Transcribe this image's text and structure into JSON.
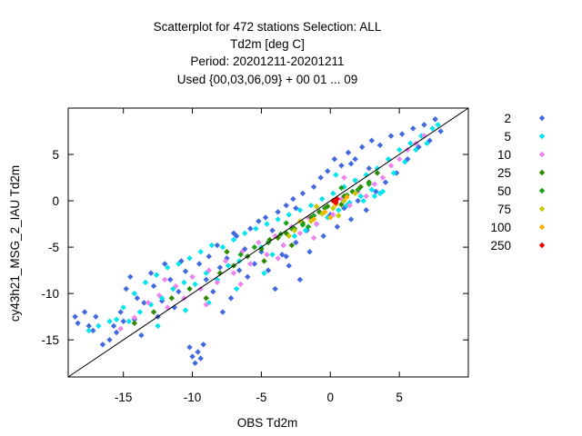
{
  "chart_data": {
    "type": "scatter",
    "title_lines": [
      "Scatterplot for  472 stations Selection: ALL",
      "Td2m [deg C]",
      "Period: 20201211-20201211",
      "Used {00,03,06,09} + 00 01 ... 09"
    ],
    "xlabel": "OBS Td2m",
    "ylabel": "cy43h21_MSG_2_IAU Td2m",
    "xlim": [
      -19,
      10
    ],
    "ylim": [
      -19,
      10
    ],
    "xticks": [
      -15,
      -10,
      -5,
      0,
      5
    ],
    "yticks": [
      -15,
      -10,
      -5,
      0,
      5
    ],
    "diagonal": true,
    "legend_position": "right",
    "series": [
      {
        "name": "2",
        "color": "#4169e1",
        "points": [
          [
            -18.5,
            -12.5
          ],
          [
            -18.3,
            -13.2
          ],
          [
            -17.8,
            -12
          ],
          [
            -17.5,
            -13.5
          ],
          [
            -17.2,
            -14
          ],
          [
            -17,
            -12.5
          ],
          [
            -16.5,
            -15.5
          ],
          [
            -16,
            -15
          ],
          [
            -15.7,
            -13.5
          ],
          [
            -15.5,
            -14.2
          ],
          [
            -15.2,
            -12
          ],
          [
            -15,
            -13
          ],
          [
            -14.8,
            -9.5
          ],
          [
            -14.5,
            -8.2
          ],
          [
            -14.2,
            -12.8
          ],
          [
            -14,
            -10.5
          ],
          [
            -13.7,
            -14.5
          ],
          [
            -13.5,
            -11
          ],
          [
            -13,
            -7.8
          ],
          [
            -12.8,
            -9.2
          ],
          [
            -12.5,
            -12.5
          ],
          [
            -12.2,
            -10.8
          ],
          [
            -12,
            -6.8
          ],
          [
            -11.6,
            -8.5
          ],
          [
            -11.3,
            -11.5
          ],
          [
            -11,
            -9.8
          ],
          [
            -10.8,
            -6.5
          ],
          [
            -10.5,
            -7.6
          ],
          [
            -10.2,
            -15.8
          ],
          [
            -10,
            -16.8
          ],
          [
            -9.8,
            -17.5
          ],
          [
            -9.6,
            -16.3
          ],
          [
            -9.4,
            -17
          ],
          [
            -9.2,
            -15.5
          ],
          [
            -9,
            -8.5
          ],
          [
            -8.8,
            -6
          ],
          [
            -8.5,
            -9.8
          ],
          [
            -8.2,
            -4.8
          ],
          [
            -8,
            -7.2
          ],
          [
            -7.8,
            -12
          ],
          [
            -7.5,
            -6.2
          ],
          [
            -7.2,
            -10.5
          ],
          [
            -7,
            -3.5
          ],
          [
            -6.6,
            -7.5
          ],
          [
            -6.2,
            -5.2
          ],
          [
            -6,
            -8.2
          ],
          [
            -5.8,
            -3
          ],
          [
            -5.5,
            -6.8
          ],
          [
            -5.2,
            -2.2
          ],
          [
            -5,
            -5.5
          ],
          [
            -4.7,
            -1.8
          ],
          [
            -4.5,
            -7.5
          ],
          [
            -4.2,
            -3.2
          ],
          [
            -4,
            -9.5
          ],
          [
            -3.8,
            -1.2
          ],
          [
            -3.5,
            -5.8
          ],
          [
            -3.2,
            -0.5
          ],
          [
            -3,
            -7
          ],
          [
            -2.7,
            0.2
          ],
          [
            -2.5,
            -4.5
          ],
          [
            -2.2,
            -8.5
          ],
          [
            -2,
            0.8
          ],
          [
            -1.7,
            -3.2
          ],
          [
            -1.5,
            -5.5
          ],
          [
            -1.2,
            1.5
          ],
          [
            -1,
            -2.5
          ],
          [
            -0.7,
            2.5
          ],
          [
            -0.5,
            -3.8
          ],
          [
            -0.2,
            3.2
          ],
          [
            0,
            -1.5
          ],
          [
            0.3,
            4.5
          ],
          [
            0.5,
            -2.8
          ],
          [
            0.8,
            3.8
          ],
          [
            1,
            -0.8
          ],
          [
            1.3,
            5.2
          ],
          [
            1.5,
            -2
          ],
          [
            1.8,
            4.5
          ],
          [
            2,
            0
          ],
          [
            2.3,
            5.8
          ],
          [
            2.6,
            -1
          ],
          [
            3,
            6.5
          ],
          [
            3.3,
            1
          ],
          [
            3.6,
            6
          ],
          [
            4,
            2
          ],
          [
            4.4,
            7
          ],
          [
            4.8,
            3
          ],
          [
            5.2,
            7.2
          ],
          [
            5.6,
            4.5
          ],
          [
            6,
            7.8
          ],
          [
            6.4,
            5.8
          ],
          [
            6.8,
            8.2
          ],
          [
            7.2,
            6.5
          ],
          [
            7.6,
            8.8
          ],
          [
            8,
            7.5
          ],
          [
            -2.5,
            -0.8
          ],
          [
            -3.2,
            -6
          ],
          [
            1.5,
            4
          ],
          [
            -0.8,
            -1.2
          ],
          [
            2.8,
            3.5
          ],
          [
            -6.8,
            -3.8
          ],
          [
            -9.5,
            -6.8
          ]
        ]
      },
      {
        "name": "5",
        "color": "#00e5ee",
        "points": [
          [
            -17.5,
            -14
          ],
          [
            -16.8,
            -13.5
          ],
          [
            -16,
            -13
          ],
          [
            -15.5,
            -12.8
          ],
          [
            -15,
            -11.5
          ],
          [
            -14.6,
            -13
          ],
          [
            -14.2,
            -10
          ],
          [
            -13.8,
            -12
          ],
          [
            -13.4,
            -8.8
          ],
          [
            -13,
            -11.2
          ],
          [
            -12.6,
            -8
          ],
          [
            -12.2,
            -10.5
          ],
          [
            -11.8,
            -7.2
          ],
          [
            -11.4,
            -9.5
          ],
          [
            -11,
            -6.8
          ],
          [
            -10.6,
            -8.8
          ],
          [
            -10.2,
            -6.2
          ],
          [
            -9.8,
            -9
          ],
          [
            -9.4,
            -5.5
          ],
          [
            -9,
            -7.8
          ],
          [
            -8.6,
            -4.8
          ],
          [
            -8.2,
            -8.5
          ],
          [
            -7.8,
            -5
          ],
          [
            -7.4,
            -7
          ],
          [
            -7,
            -4.2
          ],
          [
            -6.6,
            -6.5
          ],
          [
            -6.2,
            -3.5
          ],
          [
            -5.8,
            -6.8
          ],
          [
            -5.4,
            -3
          ],
          [
            -5,
            -5
          ],
          [
            -4.6,
            -2.5
          ],
          [
            -4.2,
            -5.8
          ],
          [
            -3.8,
            -2
          ],
          [
            -3.4,
            -4.8
          ],
          [
            -3,
            -1.5
          ],
          [
            -2.6,
            -3.8
          ],
          [
            -2.2,
            -1
          ],
          [
            -1.8,
            -3.2
          ],
          [
            -1.4,
            -0.5
          ],
          [
            -1,
            -2.5
          ],
          [
            -0.6,
            0.2
          ],
          [
            -0.2,
            -1.8
          ],
          [
            0.2,
            0.8
          ],
          [
            0.6,
            -1
          ],
          [
            1,
            1.5
          ],
          [
            1.4,
            -0.2
          ],
          [
            1.8,
            2.2
          ],
          [
            2.2,
            0.5
          ],
          [
            2.6,
            2.8
          ],
          [
            3,
            1.2
          ],
          [
            3.4,
            3.5
          ],
          [
            3.8,
            1
          ],
          [
            4.2,
            4.5
          ],
          [
            4.6,
            3
          ],
          [
            5,
            5.5
          ],
          [
            5.4,
            4.2
          ],
          [
            5.8,
            6.2
          ],
          [
            6.2,
            5.5
          ],
          [
            6.6,
            7
          ],
          [
            7,
            6.2
          ],
          [
            7.4,
            7.8
          ],
          [
            7.8,
            8.2
          ],
          [
            3.2,
            0.5
          ],
          [
            2.4,
            0
          ],
          [
            -8.8,
            -11
          ],
          [
            -12.5,
            -13.5
          ],
          [
            -10.5,
            -11.8
          ],
          [
            -6.8,
            -9.5
          ],
          [
            -4.8,
            -7.8
          ],
          [
            1.2,
            -0.5
          ],
          [
            3.6,
            0.8
          ],
          [
            0.4,
            2.8
          ]
        ]
      },
      {
        "name": "10",
        "color": "#ee82ee",
        "points": [
          [
            -15.2,
            -13.8
          ],
          [
            -14.2,
            -12.6
          ],
          [
            -13.2,
            -11
          ],
          [
            -12.4,
            -10.2
          ],
          [
            -11.8,
            -11.5
          ],
          [
            -11.2,
            -9.2
          ],
          [
            -10.6,
            -10.5
          ],
          [
            -10,
            -8.2
          ],
          [
            -9.4,
            -9.5
          ],
          [
            -8.8,
            -7.5
          ],
          [
            -8.2,
            -8.8
          ],
          [
            -7.6,
            -6.5
          ],
          [
            -7,
            -7.8
          ],
          [
            -6.4,
            -5.5
          ],
          [
            -5.8,
            -6.8
          ],
          [
            -5.2,
            -4.5
          ],
          [
            -4.6,
            -5.8
          ],
          [
            -4,
            -3.8
          ],
          [
            -3.4,
            -4.8
          ],
          [
            -2.8,
            -2.8
          ],
          [
            -2.2,
            -3.5
          ],
          [
            -1.6,
            -1.8
          ],
          [
            -1,
            -2.5
          ],
          [
            -0.4,
            -0.8
          ],
          [
            0.2,
            -1.5
          ],
          [
            0.8,
            0.2
          ],
          [
            1.4,
            -0.5
          ],
          [
            2,
            1
          ],
          [
            2.6,
            0.5
          ],
          [
            3.2,
            1.8
          ],
          [
            3.8,
            2.5
          ],
          [
            4.4,
            3.8
          ],
          [
            5,
            4.5
          ],
          [
            5.6,
            5.5
          ],
          [
            6.2,
            6.2
          ],
          [
            6.8,
            7
          ],
          [
            -9,
            -11.2
          ],
          [
            -6.5,
            -9
          ],
          [
            -3.8,
            -6.2
          ],
          [
            -1.2,
            -4
          ],
          [
            1,
            2.5
          ],
          [
            -12,
            -8.5
          ]
        ]
      },
      {
        "name": "25",
        "color": "#2e8b00",
        "points": [
          [
            -14.2,
            -13.2
          ],
          [
            -12.8,
            -12
          ],
          [
            -11.5,
            -10.5
          ],
          [
            -10.2,
            -9.5
          ],
          [
            -9,
            -10.5
          ],
          [
            -8,
            -7.8
          ],
          [
            -7,
            -7
          ],
          [
            -6,
            -6
          ],
          [
            -5,
            -5.2
          ],
          [
            -4.4,
            -4.2
          ],
          [
            -3.8,
            -4
          ],
          [
            -3.2,
            -3.5
          ],
          [
            -2.6,
            -3
          ],
          [
            -2,
            -2.4
          ],
          [
            -1.4,
            -1.8
          ],
          [
            -0.8,
            -1.2
          ],
          [
            -0.2,
            -0.6
          ],
          [
            0.4,
            0
          ],
          [
            1,
            0.5
          ],
          [
            1.6,
            1
          ],
          [
            2.2,
            1.5
          ],
          [
            2.8,
            2
          ],
          [
            3.4,
            3
          ],
          [
            -4.8,
            -6.5
          ],
          [
            -7.5,
            -5.5
          ],
          [
            -2.8,
            -4.8
          ],
          [
            0.8,
            -0.4
          ]
        ]
      },
      {
        "name": "50",
        "color": "#1ea01e",
        "points": [
          [
            -6.5,
            -5.8
          ],
          [
            -5.5,
            -5
          ],
          [
            -4.5,
            -4.5
          ],
          [
            -3.6,
            -3.6
          ],
          [
            -2.8,
            -3
          ],
          [
            -2,
            -2.6
          ],
          [
            -1.2,
            -1.6
          ],
          [
            -0.4,
            -0.8
          ],
          [
            0.4,
            -0.2
          ],
          [
            1.2,
            0.6
          ],
          [
            2,
            1.2
          ],
          [
            2.8,
            1.8
          ],
          [
            -3.2,
            -2.4
          ],
          [
            -1.6,
            -2.8
          ],
          [
            0.8,
            1.4
          ]
        ]
      },
      {
        "name": "75",
        "color": "#c8c800",
        "points": [
          [
            -3,
            -3.8
          ],
          [
            -2.2,
            -2.2
          ],
          [
            -1.4,
            -2.2
          ],
          [
            -0.6,
            -1.4
          ],
          [
            0.2,
            -0.8
          ],
          [
            1,
            0
          ],
          [
            1.8,
            0.8
          ],
          [
            -1,
            -0.6
          ],
          [
            0.6,
            -1.6
          ],
          [
            -2.6,
            -3.2
          ]
        ]
      },
      {
        "name": "100",
        "color": "#ffb000",
        "points": [
          [
            -0.4,
            -1.2
          ],
          [
            0.4,
            -0.4
          ],
          [
            1.2,
            0.4
          ],
          [
            -1.2,
            -2
          ],
          [
            0,
            -1.8
          ]
        ]
      },
      {
        "name": "250",
        "color": "#ee0000",
        "points": [
          [
            0.2,
            0
          ],
          [
            0.5,
            0.2
          ],
          [
            0.4,
            -0.2
          ]
        ]
      }
    ]
  }
}
